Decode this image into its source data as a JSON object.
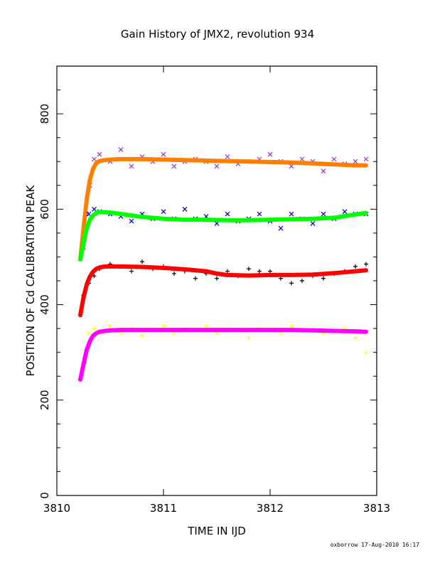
{
  "chart_data": {
    "type": "scatter",
    "title": "Gain History of JMX2, revolution 934",
    "xlabel": "TIME IN IJD",
    "ylabel": "POSITION OF Cd CALIBRATION PEAK",
    "xlim": [
      3810,
      3813
    ],
    "ylim": [
      0,
      900
    ],
    "x_ticks": [
      "3810",
      "3811",
      "3812",
      "3813"
    ],
    "y_ticks": [
      "0",
      "200",
      "400",
      "600",
      "800"
    ],
    "x_tick_values": [
      3810,
      3811,
      3812,
      3813
    ],
    "y_tick_values": [
      0,
      200,
      400,
      600,
      800
    ],
    "grid": false,
    "legend": "none",
    "series": [
      {
        "marker": "x",
        "color": "#9933cc",
        "x": [
          3810.25,
          3810.28,
          3810.31,
          3810.35,
          3810.4,
          3810.5,
          3810.6,
          3810.7,
          3810.8,
          3810.9,
          3811.0,
          3811.1,
          3811.2,
          3811.3,
          3811.4,
          3811.5,
          3811.6,
          3811.7,
          3811.8,
          3811.9,
          3812.0,
          3812.1,
          3812.2,
          3812.3,
          3812.4,
          3812.5,
          3812.6,
          3812.7,
          3812.8,
          3812.9
        ],
        "y": [
          520,
          590,
          650,
          705,
          715,
          700,
          725,
          690,
          710,
          700,
          715,
          690,
          700,
          705,
          700,
          690,
          710,
          695,
          700,
          705,
          715,
          700,
          690,
          705,
          700,
          680,
          705,
          695,
          700,
          705
        ]
      },
      {
        "marker": "line",
        "color": "#ff8000",
        "x": [
          3810.22,
          3810.25,
          3810.28,
          3810.31,
          3810.34,
          3810.37,
          3810.4,
          3810.45,
          3810.5,
          3810.6,
          3810.8,
          3811.0,
          3811.2,
          3811.4,
          3811.6,
          3811.8,
          3812.0,
          3812.2,
          3812.4,
          3812.6,
          3812.8,
          3812.9
        ],
        "y": [
          495,
          560,
          620,
          662,
          685,
          697,
          701,
          703,
          704,
          705,
          705,
          704,
          703,
          702,
          701,
          700,
          699,
          698,
          696,
          694,
          692,
          692
        ]
      },
      {
        "marker": "x",
        "color": "#0000cc",
        "x": [
          3810.3,
          3810.35,
          3810.4,
          3810.5,
          3810.6,
          3810.7,
          3810.8,
          3810.9,
          3811.0,
          3811.1,
          3811.2,
          3811.3,
          3811.4,
          3811.5,
          3811.6,
          3811.7,
          3811.8,
          3811.9,
          3812.0,
          3812.1,
          3812.2,
          3812.3,
          3812.4,
          3812.5,
          3812.6,
          3812.7,
          3812.8,
          3812.9
        ],
        "y": [
          590,
          600,
          595,
          590,
          585,
          575,
          590,
          580,
          595,
          580,
          600,
          580,
          585,
          570,
          590,
          575,
          580,
          590,
          575,
          560,
          590,
          580,
          570,
          590,
          580,
          595,
          590,
          590
        ]
      },
      {
        "marker": "line",
        "color": "#00ff00",
        "x": [
          3810.22,
          3810.25,
          3810.28,
          3810.31,
          3810.34,
          3810.37,
          3810.4,
          3810.45,
          3810.5,
          3810.6,
          3810.8,
          3811.0,
          3811.2,
          3811.4,
          3811.6,
          3811.8,
          3812.0,
          3812.2,
          3812.4,
          3812.6,
          3812.8,
          3812.9
        ],
        "y": [
          495,
          530,
          560,
          578,
          587,
          592,
          594,
          594,
          593,
          590,
          584,
          580,
          578,
          578,
          577,
          577,
          578,
          579,
          580,
          582,
          589,
          592
        ]
      },
      {
        "marker": "+",
        "color": "#000000",
        "x": [
          3810.25,
          3810.3,
          3810.35,
          3810.4,
          3810.5,
          3810.6,
          3810.7,
          3810.8,
          3810.9,
          3811.0,
          3811.1,
          3811.2,
          3811.3,
          3811.4,
          3811.5,
          3811.6,
          3811.7,
          3811.8,
          3811.9,
          3812.0,
          3812.1,
          3812.2,
          3812.3,
          3812.4,
          3812.5,
          3812.6,
          3812.7,
          3812.8,
          3812.9
        ],
        "y": [
          420,
          445,
          460,
          475,
          485,
          480,
          470,
          490,
          475,
          480,
          465,
          470,
          455,
          465,
          455,
          470,
          460,
          475,
          470,
          470,
          455,
          445,
          450,
          460,
          455,
          465,
          470,
          480,
          485
        ]
      },
      {
        "marker": "line",
        "color": "#ff0000",
        "x": [
          3810.22,
          3810.25,
          3810.28,
          3810.31,
          3810.34,
          3810.37,
          3810.4,
          3810.45,
          3810.5,
          3810.6,
          3810.8,
          3811.0,
          3811.2,
          3811.4,
          3811.5,
          3811.6,
          3811.8,
          3812.0,
          3812.2,
          3812.4,
          3812.6,
          3812.8,
          3812.9
        ],
        "y": [
          378,
          415,
          442,
          459,
          469,
          475,
          478,
          480,
          480,
          480,
          479,
          477,
          474,
          470,
          465,
          462,
          461,
          462,
          462,
          463,
          466,
          470,
          472
        ]
      },
      {
        "marker": "+",
        "color": "#ffff00",
        "x": [
          3810.3,
          3810.35,
          3810.4,
          3810.5,
          3810.6,
          3810.7,
          3810.8,
          3810.9,
          3811.0,
          3811.1,
          3811.2,
          3811.3,
          3811.4,
          3811.5,
          3811.6,
          3811.7,
          3811.8,
          3811.9,
          3812.0,
          3812.1,
          3812.2,
          3812.3,
          3812.4,
          3812.5,
          3812.6,
          3812.7,
          3812.8,
          3812.9
        ],
        "y": [
          340,
          350,
          345,
          355,
          340,
          350,
          335,
          345,
          355,
          340,
          350,
          345,
          355,
          340,
          350,
          345,
          330,
          350,
          345,
          340,
          355,
          345,
          350,
          340,
          345,
          350,
          330,
          300
        ]
      },
      {
        "marker": "line",
        "color": "#ff00ff",
        "x": [
          3810.22,
          3810.25,
          3810.28,
          3810.31,
          3810.34,
          3810.37,
          3810.4,
          3810.45,
          3810.5,
          3810.6,
          3810.8,
          3811.0,
          3811.2,
          3811.4,
          3811.6,
          3811.8,
          3812.0,
          3812.2,
          3812.4,
          3812.6,
          3812.8,
          3812.9
        ],
        "y": [
          243,
          275,
          305,
          323,
          335,
          340,
          343,
          345,
          346,
          347,
          347,
          347,
          347,
          347,
          347,
          347,
          347,
          347,
          346,
          345,
          344,
          343
        ]
      }
    ]
  },
  "footer": {
    "credit": "oxborrow 17-Aug-2010 16:17"
  }
}
